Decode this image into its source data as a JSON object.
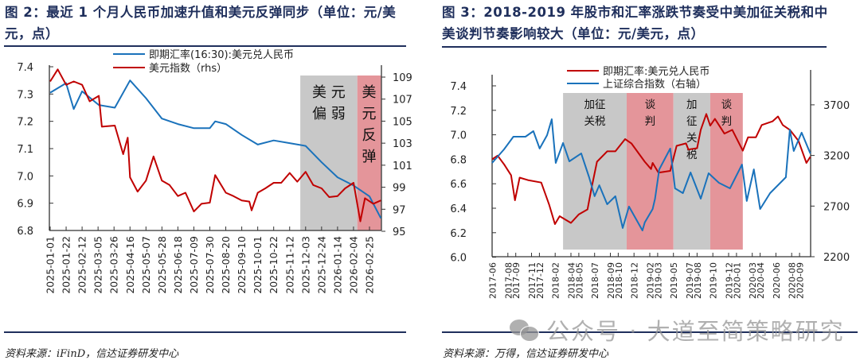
{
  "left": {
    "title": "图 2：最近 1 个月人民币加速升值和美元反弹同步（单位：元/美元，点）",
    "source": "资料来源：iFinD，信达证券研发中心"
  },
  "right": {
    "title": "图 3：2018-2019 年股市和汇率涨跌节奏受中美加征关税和中美谈判节奏影响较大（单位：元/美元，点）",
    "source": "资料来源：万得，信达证券研发中心"
  },
  "watermark": "公众号 · 大道至简策略研究",
  "colors": {
    "blue": "#1a72bb",
    "red": "#c00000",
    "gray_band": "#c8c8c8",
    "pink_band": "#e4959a",
    "title": "#1f2f5c"
  },
  "chart_data": [
    {
      "type": "line",
      "legend_placement": "top-center",
      "grid": false,
      "yticks_left": [
        "7.4",
        "7.3",
        "7.2",
        "7.1",
        "7.0",
        "6.9",
        "6.8"
      ],
      "ylim_left": [
        6.8,
        7.4
      ],
      "yticks_right": [
        "109",
        "107",
        "105",
        "103",
        "101",
        "99",
        "97",
        "95"
      ],
      "ylim_right": [
        95,
        109
      ],
      "xticks": [
        "2025-01-01",
        "2025-01-22",
        "2025-02-12",
        "2025-03-05",
        "2025-03-26",
        "2025-04-16",
        "2025-05-07",
        "2025-05-28",
        "2025-06-18",
        "2025-07-09",
        "2025-07-30",
        "2025-08-20",
        "2025-09-10",
        "2025-10-01",
        "2025-10-22",
        "2025-11-12",
        "2025-12-03",
        "2025-12-24",
        "2026-01-14",
        "2026-02-04",
        "2026-02-25"
      ],
      "bands": [
        {
          "from": "2025-11-26",
          "to": "2026-02-09",
          "label": "美元偏弱",
          "color": "gray"
        },
        {
          "from": "2026-02-09",
          "to": "2026-03-12",
          "label": "美元反弹",
          "color": "pink"
        }
      ],
      "series": [
        {
          "name": "即期汇率(16:30):美元兑人民币",
          "axis": "left",
          "color": "blue",
          "points": [
            [
              "2025-01-01",
              7.305
            ],
            [
              "2025-01-22",
              7.34
            ],
            [
              "2025-02-01",
              7.245
            ],
            [
              "2025-02-12",
              7.31
            ],
            [
              "2025-03-06",
              7.26
            ],
            [
              "2025-03-27",
              7.25
            ],
            [
              "2025-04-16",
              7.35
            ],
            [
              "2025-05-07",
              7.285
            ],
            [
              "2025-05-28",
              7.21
            ],
            [
              "2025-06-18",
              7.19
            ],
            [
              "2025-07-09",
              7.175
            ],
            [
              "2025-07-30",
              7.175
            ],
            [
              "2025-08-06",
              7.2
            ],
            [
              "2025-08-20",
              7.19
            ],
            [
              "2025-09-10",
              7.15
            ],
            [
              "2025-10-01",
              7.115
            ],
            [
              "2025-10-22",
              7.13
            ],
            [
              "2025-11-12",
              7.12
            ],
            [
              "2025-12-03",
              7.11
            ],
            [
              "2025-12-24",
              7.05
            ],
            [
              "2026-01-14",
              6.995
            ],
            [
              "2026-02-04",
              6.965
            ],
            [
              "2026-02-25",
              6.925
            ],
            [
              "2026-03-12",
              6.845
            ]
          ]
        },
        {
          "name": "美元指数（rhs）",
          "axis": "right",
          "color": "red",
          "points": [
            [
              "2025-01-01",
              108.6
            ],
            [
              "2025-01-11",
              109.7
            ],
            [
              "2025-01-22",
              108.3
            ],
            [
              "2025-02-01",
              108.6
            ],
            [
              "2025-02-12",
              108.3
            ],
            [
              "2025-02-22",
              106.8
            ],
            [
              "2025-03-06",
              107.3
            ],
            [
              "2025-03-10",
              104.5
            ],
            [
              "2025-03-27",
              104.6
            ],
            [
              "2025-04-07",
              102.0
            ],
            [
              "2025-04-13",
              103.5
            ],
            [
              "2025-04-16",
              99.9
            ],
            [
              "2025-04-26",
              98.6
            ],
            [
              "2025-05-07",
              99.6
            ],
            [
              "2025-05-17",
              101.8
            ],
            [
              "2025-05-28",
              99.6
            ],
            [
              "2025-06-07",
              99.2
            ],
            [
              "2025-06-18",
              98.2
            ],
            [
              "2025-06-28",
              98.5
            ],
            [
              "2025-07-09",
              96.8
            ],
            [
              "2025-07-19",
              97.5
            ],
            [
              "2025-07-30",
              97.6
            ],
            [
              "2025-08-06",
              100.1
            ],
            [
              "2025-08-20",
              98.5
            ],
            [
              "2025-08-30",
              98.2
            ],
            [
              "2025-09-10",
              97.8
            ],
            [
              "2025-09-20",
              97.7
            ],
            [
              "2025-09-23",
              96.9
            ],
            [
              "2025-10-01",
              98.5
            ],
            [
              "2025-10-11",
              98.9
            ],
            [
              "2025-10-22",
              99.4
            ],
            [
              "2025-11-01",
              99.4
            ],
            [
              "2025-11-12",
              100.3
            ],
            [
              "2025-11-22",
              99.5
            ],
            [
              "2025-12-03",
              100.4
            ],
            [
              "2025-12-13",
              99.2
            ],
            [
              "2025-12-24",
              98.9
            ],
            [
              "2026-01-03",
              98.1
            ],
            [
              "2026-01-14",
              98.2
            ],
            [
              "2026-01-24",
              98.9
            ],
            [
              "2026-02-04",
              99.4
            ],
            [
              "2026-02-13",
              95.9
            ],
            [
              "2026-02-19",
              98.0
            ],
            [
              "2026-03-02",
              97.5
            ],
            [
              "2026-03-12",
              97.8
            ]
          ]
        }
      ]
    },
    {
      "type": "line",
      "legend_placement": "top-center",
      "grid": false,
      "yticks_left": [
        "7.4",
        "7.2",
        "7.0",
        "6.8",
        "6.6",
        "6.4",
        "6.2",
        "6.0"
      ],
      "ylim_left": [
        6.0,
        7.4
      ],
      "yticks_right": [
        "3700",
        "3200",
        "2700",
        "2200"
      ],
      "ylim_right": [
        2200,
        3700
      ],
      "xticks": [
        "2017-06",
        "2017-08",
        "2017-09",
        "2017-11",
        "2017-12",
        "2018-02",
        "2018-04",
        "2018-05",
        "2018-07",
        "2018-09",
        "2018-10",
        "2018-12",
        "2019-02",
        "2019-03",
        "2019-05",
        "2019-07",
        "2019-08",
        "2019-10",
        "2019-12",
        "2020-01",
        "2020-03",
        "2020-04",
        "2020-06",
        "2020-08",
        "2020-09"
      ],
      "bands": [
        {
          "from": "2018-03-01",
          "to": "2018-11-03",
          "label": "加征关税",
          "color": "gray"
        },
        {
          "from": "2018-11-03",
          "to": "2019-05-01",
          "label": "谈判",
          "color": "pink"
        },
        {
          "from": "2019-05-01",
          "to": "2019-09-21",
          "label": "加征关税",
          "color": "gray"
        },
        {
          "from": "2019-09-21",
          "to": "2020-01-25",
          "label": "谈判",
          "color": "pink"
        }
      ],
      "series": [
        {
          "name": "即期汇率:美元兑人民币",
          "axis": "left",
          "color": "red",
          "points": [
            [
              "2017-06-01",
              6.8
            ],
            [
              "2017-06-22",
              6.83
            ],
            [
              "2017-07-16",
              6.76
            ],
            [
              "2017-08-13",
              6.67
            ],
            [
              "2017-08-28",
              6.465
            ],
            [
              "2017-09-16",
              6.65
            ],
            [
              "2017-10-17",
              6.63
            ],
            [
              "2017-12-08",
              6.61
            ],
            [
              "2018-01-08",
              6.43
            ],
            [
              "2018-01-30",
              6.27
            ],
            [
              "2018-02-18",
              6.335
            ],
            [
              "2018-04-01",
              6.28
            ],
            [
              "2018-05-01",
              6.35
            ],
            [
              "2018-06-04",
              6.39
            ],
            [
              "2018-06-19",
              6.56
            ],
            [
              "2018-07-10",
              6.78
            ],
            [
              "2018-08-19",
              6.865
            ],
            [
              "2018-09-20",
              6.865
            ],
            [
              "2018-10-27",
              6.965
            ],
            [
              "2018-11-21",
              6.93
            ],
            [
              "2019-01-12",
              6.78
            ],
            [
              "2019-02-06",
              6.72
            ],
            [
              "2019-02-12",
              6.77
            ],
            [
              "2019-03-04",
              6.69
            ],
            [
              "2019-04-19",
              6.705
            ],
            [
              "2019-05-13",
              6.91
            ],
            [
              "2019-06-19",
              6.93
            ],
            [
              "2019-06-28",
              6.88
            ],
            [
              "2019-08-01",
              6.89
            ],
            [
              "2019-08-15",
              7.04
            ],
            [
              "2019-09-06",
              7.17
            ],
            [
              "2019-09-21",
              7.075
            ],
            [
              "2019-10-09",
              7.13
            ],
            [
              "2019-11-15",
              7.01
            ],
            [
              "2019-12-15",
              7.04
            ],
            [
              "2020-01-25",
              6.87
            ],
            [
              "2020-02-15",
              6.98
            ],
            [
              "2020-03-15",
              6.98
            ],
            [
              "2020-04-07",
              7.08
            ],
            [
              "2020-05-18",
              7.11
            ],
            [
              "2020-06-09",
              7.15
            ],
            [
              "2020-06-27",
              7.08
            ],
            [
              "2020-07-24",
              7.04
            ],
            [
              "2020-08-27",
              6.95
            ],
            [
              "2020-09-27",
              6.77
            ],
            [
              "2020-10-12",
              6.82
            ]
          ]
        },
        {
          "name": "上证综合指数（右轴）",
          "axis": "right",
          "color": "blue",
          "points": [
            [
              "2017-06-01",
              3126
            ],
            [
              "2017-07-16",
              3260
            ],
            [
              "2017-08-22",
              3385
            ],
            [
              "2017-10-08",
              3385
            ],
            [
              "2017-11-08",
              3440
            ],
            [
              "2017-12-02",
              3268
            ],
            [
              "2017-12-30",
              3400
            ],
            [
              "2018-01-18",
              3558
            ],
            [
              "2018-02-03",
              3126
            ],
            [
              "2018-03-01",
              3323
            ],
            [
              "2018-03-25",
              3142
            ],
            [
              "2018-05-10",
              3220
            ],
            [
              "2018-06-10",
              2985
            ],
            [
              "2018-07-01",
              2797
            ],
            [
              "2018-07-19",
              2906
            ],
            [
              "2018-08-19",
              2718
            ],
            [
              "2018-09-20",
              2797
            ],
            [
              "2018-10-18",
              2483
            ],
            [
              "2018-11-12",
              2695
            ],
            [
              "2019-01-03",
              2459
            ],
            [
              "2019-01-12",
              2538
            ],
            [
              "2019-02-12",
              2671
            ],
            [
              "2019-02-21",
              2773
            ],
            [
              "2019-03-07",
              3063
            ],
            [
              "2019-04-19",
              3268
            ],
            [
              "2019-05-07",
              2875
            ],
            [
              "2019-06-07",
              2828
            ],
            [
              "2019-07-06",
              3032
            ],
            [
              "2019-08-15",
              2773
            ],
            [
              "2019-09-15",
              3024
            ],
            [
              "2019-10-24",
              2930
            ],
            [
              "2019-12-06",
              2875
            ],
            [
              "2020-01-22",
              3110
            ],
            [
              "2020-02-10",
              2750
            ],
            [
              "2020-03-07",
              3063
            ],
            [
              "2020-04-01",
              2671
            ],
            [
              "2020-05-09",
              2828
            ],
            [
              "2020-07-09",
              2985
            ],
            [
              "2020-07-24",
              3456
            ],
            [
              "2020-08-09",
              3244
            ],
            [
              "2020-09-09",
              3425
            ],
            [
              "2020-10-12",
              3220
            ]
          ]
        }
      ]
    }
  ]
}
